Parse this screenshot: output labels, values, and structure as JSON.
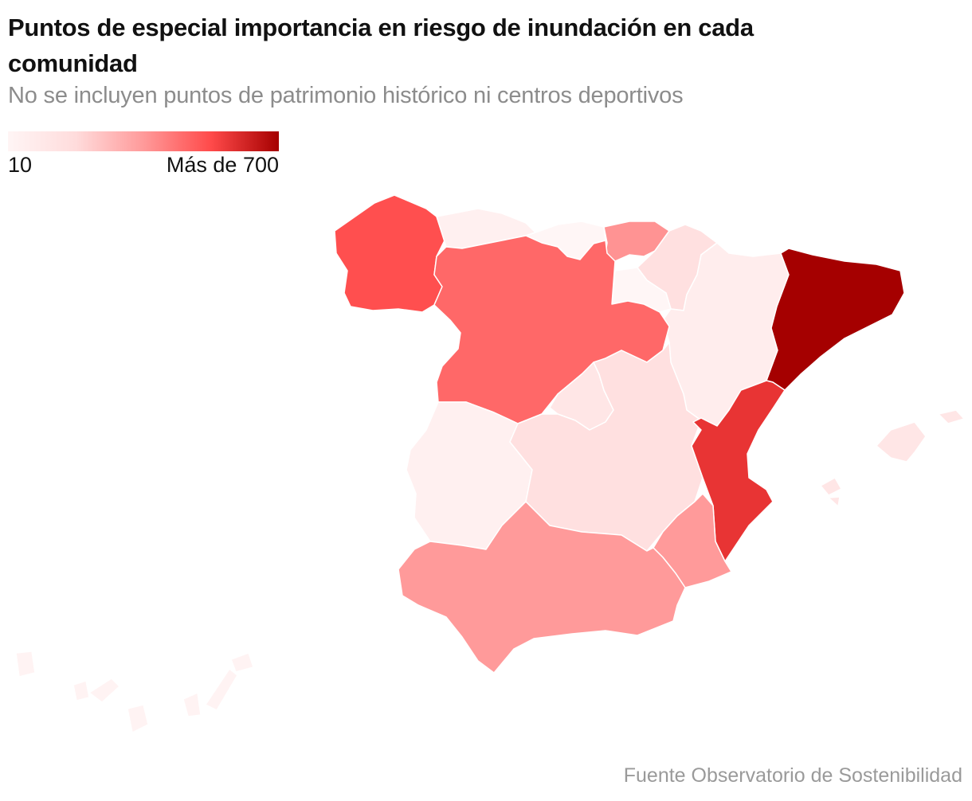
{
  "title": "Puntos de especial importancia en riesgo de inundación en cada comunidad",
  "subtitle": "No se incluyen puntos de patrimonio histórico ni centros deportivos",
  "legend": {
    "min_label": "10",
    "max_label": "Más de 700",
    "color_min": "#fff5f5",
    "color_max": "#a50000"
  },
  "source": "Fuente Observatorio de Sostenibilidad",
  "map_data": {
    "type": "choropleth",
    "regions": [
      {
        "name": "Galicia",
        "color": "#ff4f4f"
      },
      {
        "name": "Asturias",
        "color": "#fff0f0"
      },
      {
        "name": "Cantabria",
        "color": "#fff6f6"
      },
      {
        "name": "País Vasco",
        "color": "#ff9393"
      },
      {
        "name": "Navarra",
        "color": "#ffe0e0"
      },
      {
        "name": "La Rioja",
        "color": "#fff6f6"
      },
      {
        "name": "Aragón",
        "color": "#ffeded"
      },
      {
        "name": "Cataluña",
        "color": "#a50000"
      },
      {
        "name": "Castilla y León",
        "color": "#ff6868"
      },
      {
        "name": "Madrid",
        "color": "#ffe6e6"
      },
      {
        "name": "Castilla-La Mancha",
        "color": "#ffe0e0"
      },
      {
        "name": "Extremadura",
        "color": "#fff0f0"
      },
      {
        "name": "Comunidad Valenciana",
        "color": "#e83434"
      },
      {
        "name": "Región de Murcia",
        "color": "#ff9a9a"
      },
      {
        "name": "Andalucía",
        "color": "#ff9a9a"
      },
      {
        "name": "Islas Baleares",
        "color": "#ffe6e6"
      },
      {
        "name": "Canarias",
        "color": "#fff3f3"
      }
    ]
  }
}
